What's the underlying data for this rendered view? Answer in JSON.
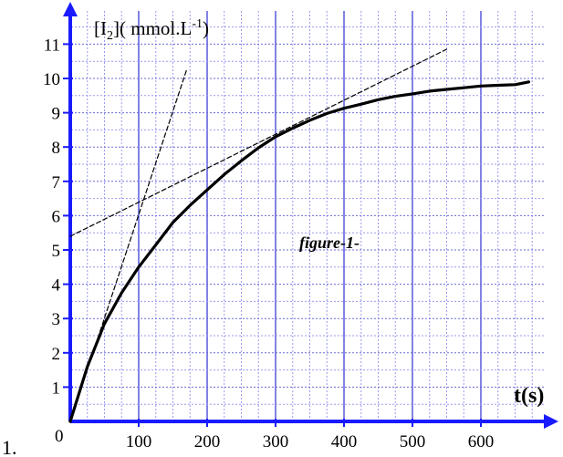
{
  "prefix": "1.",
  "chart_data": {
    "type": "line",
    "title": "",
    "xlabel": "t(s)",
    "ylabel": "[I2]( mmol.L-1)",
    "ylabel_parts": {
      "open": "[I",
      "sub": "2",
      "mid": "]( mmol.L",
      "sup": "-1",
      "close": ")"
    },
    "xlim": [
      0,
      660
    ],
    "ylim": [
      0,
      11.5
    ],
    "x_ticks": [
      100,
      200,
      300,
      400,
      500,
      600
    ],
    "y_ticks": [
      1,
      2,
      3,
      4,
      5,
      6,
      7,
      8,
      9,
      10,
      11
    ],
    "origin_label": "0",
    "grid": true,
    "annotation": "figure-1-",
    "series": [
      {
        "style": "solid",
        "x": [
          0,
          25,
          50,
          75,
          100,
          125,
          150,
          175,
          200,
          225,
          250,
          275,
          300,
          325,
          350,
          375,
          400,
          425,
          450,
          475,
          500,
          525,
          550,
          575,
          600,
          625,
          650,
          670
        ],
        "y": [
          0,
          1.6,
          2.85,
          3.75,
          4.5,
          5.15,
          5.8,
          6.3,
          6.75,
          7.2,
          7.6,
          7.98,
          8.3,
          8.55,
          8.78,
          8.98,
          9.13,
          9.25,
          9.38,
          9.48,
          9.55,
          9.63,
          9.68,
          9.73,
          9.78,
          9.8,
          9.82,
          9.9
        ]
      },
      {
        "style": "dashed",
        "x": [
          0,
          170
        ],
        "y": [
          0,
          10.25
        ]
      },
      {
        "style": "dashed",
        "x": [
          0,
          550
        ],
        "y": [
          5.4,
          10.85
        ]
      }
    ]
  }
}
